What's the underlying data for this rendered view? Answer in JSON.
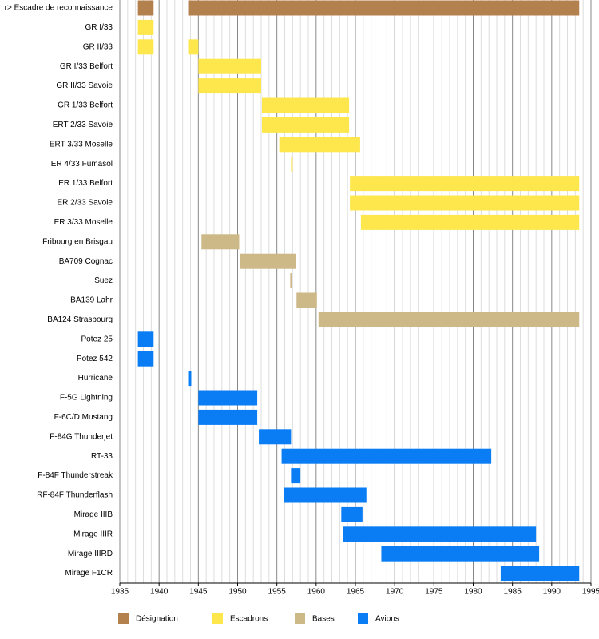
{
  "chart_data": {
    "type": "timeline",
    "categories": [
      "r> Escadre de reconnaissance",
      "GR I/33",
      "GR II/33",
      "GR I/33 Belfort",
      "GR II/33 Savoie",
      "GR 1/33 Belfort",
      "ERT 2/33 Savoie",
      "ERT 3/33 Moselle",
      "ER 4/33 Fumasol",
      "ER 1/33 Belfort",
      "ER 2/33 Savoie",
      "ER 3/33 Moselle",
      "Fribourg en Brisgau",
      "BA709 Cognac",
      "Suez",
      "BA139 Lahr",
      "BA124 Strasbourg",
      "Potez 25",
      "Potez 542",
      "Hurricane",
      "F-5G Lightning",
      "F-6C/D Mustang",
      "F-84G Thunderjet",
      "RT-33",
      "F-84F Thunderstreak",
      "RF-84F Thunderflash",
      "Mirage IIIB",
      "Mirage IIIR",
      "Mirage IIIRD",
      "Mirage F1CR"
    ],
    "series": [
      {
        "name": "Désignation",
        "color": "#b3814d",
        "values": [
          [
            [
              1937.3,
              1939.3
            ],
            [
              1943.8,
              1993.5
            ]
          ],
          null,
          null,
          null,
          null,
          null,
          null,
          null,
          null,
          null,
          null,
          null,
          null,
          null,
          null,
          null,
          null,
          null,
          null,
          null,
          null,
          null,
          null,
          null,
          null,
          null,
          null,
          null,
          null,
          null
        ]
      },
      {
        "name": "Escadrons",
        "color": "#fde74c",
        "values": [
          null,
          [
            [
              1937.3,
              1939.3
            ]
          ],
          [
            [
              1937.3,
              1939.3
            ],
            [
              1943.8,
              1945.0
            ]
          ],
          [
            [
              1945.0,
              1953.0
            ]
          ],
          [
            [
              1945.0,
              1953.0
            ]
          ],
          [
            [
              1953.1,
              1964.2
            ]
          ],
          [
            [
              1953.1,
              1964.2
            ]
          ],
          [
            [
              1955.3,
              1965.6
            ]
          ],
          [
            [
              1956.8,
              1957.0
            ]
          ],
          [
            [
              1964.3,
              1993.5
            ]
          ],
          [
            [
              1964.3,
              1993.5
            ]
          ],
          [
            [
              1965.7,
              1993.5
            ]
          ],
          null,
          null,
          null,
          null,
          null,
          null,
          null,
          null,
          null,
          null,
          null,
          null,
          null,
          null,
          null,
          null,
          null,
          null
        ]
      },
      {
        "name": "Bases",
        "color": "#cdb887",
        "values": [
          null,
          null,
          null,
          null,
          null,
          null,
          null,
          null,
          null,
          null,
          null,
          null,
          [
            [
              1945.4,
              1950.2
            ]
          ],
          [
            [
              1950.3,
              1957.4
            ]
          ],
          [
            [
              1956.7,
              1956.9
            ]
          ],
          [
            [
              1957.5,
              1960.1
            ]
          ],
          [
            [
              1960.3,
              1993.5
            ]
          ],
          null,
          null,
          null,
          null,
          null,
          null,
          null,
          null,
          null,
          null,
          null,
          null,
          null
        ]
      },
      {
        "name": "Avions",
        "color": "#0a7df5",
        "values": [
          null,
          null,
          null,
          null,
          null,
          null,
          null,
          null,
          null,
          null,
          null,
          null,
          null,
          null,
          null,
          null,
          null,
          [
            [
              1937.3,
              1939.3
            ]
          ],
          [
            [
              1937.3,
              1939.3
            ]
          ],
          [
            [
              1943.8,
              1944.1
            ]
          ],
          [
            [
              1945.0,
              1952.5
            ]
          ],
          [
            [
              1945.0,
              1952.5
            ]
          ],
          [
            [
              1952.7,
              1956.8
            ]
          ],
          [
            [
              1955.6,
              1982.3
            ]
          ],
          [
            [
              1956.8,
              1958.0
            ]
          ],
          [
            [
              1955.9,
              1966.4
            ]
          ],
          [
            [
              1963.2,
              1965.9
            ]
          ],
          [
            [
              1963.4,
              1988.0
            ]
          ],
          [
            [
              1968.3,
              1988.4
            ]
          ],
          [
            [
              1983.5,
              1993.5
            ]
          ]
        ]
      }
    ],
    "xlim": [
      1935,
      1995
    ],
    "xticks": [
      1935,
      1940,
      1945,
      1950,
      1955,
      1960,
      1965,
      1970,
      1975,
      1980,
      1985,
      1990,
      1995
    ],
    "grid": true
  }
}
